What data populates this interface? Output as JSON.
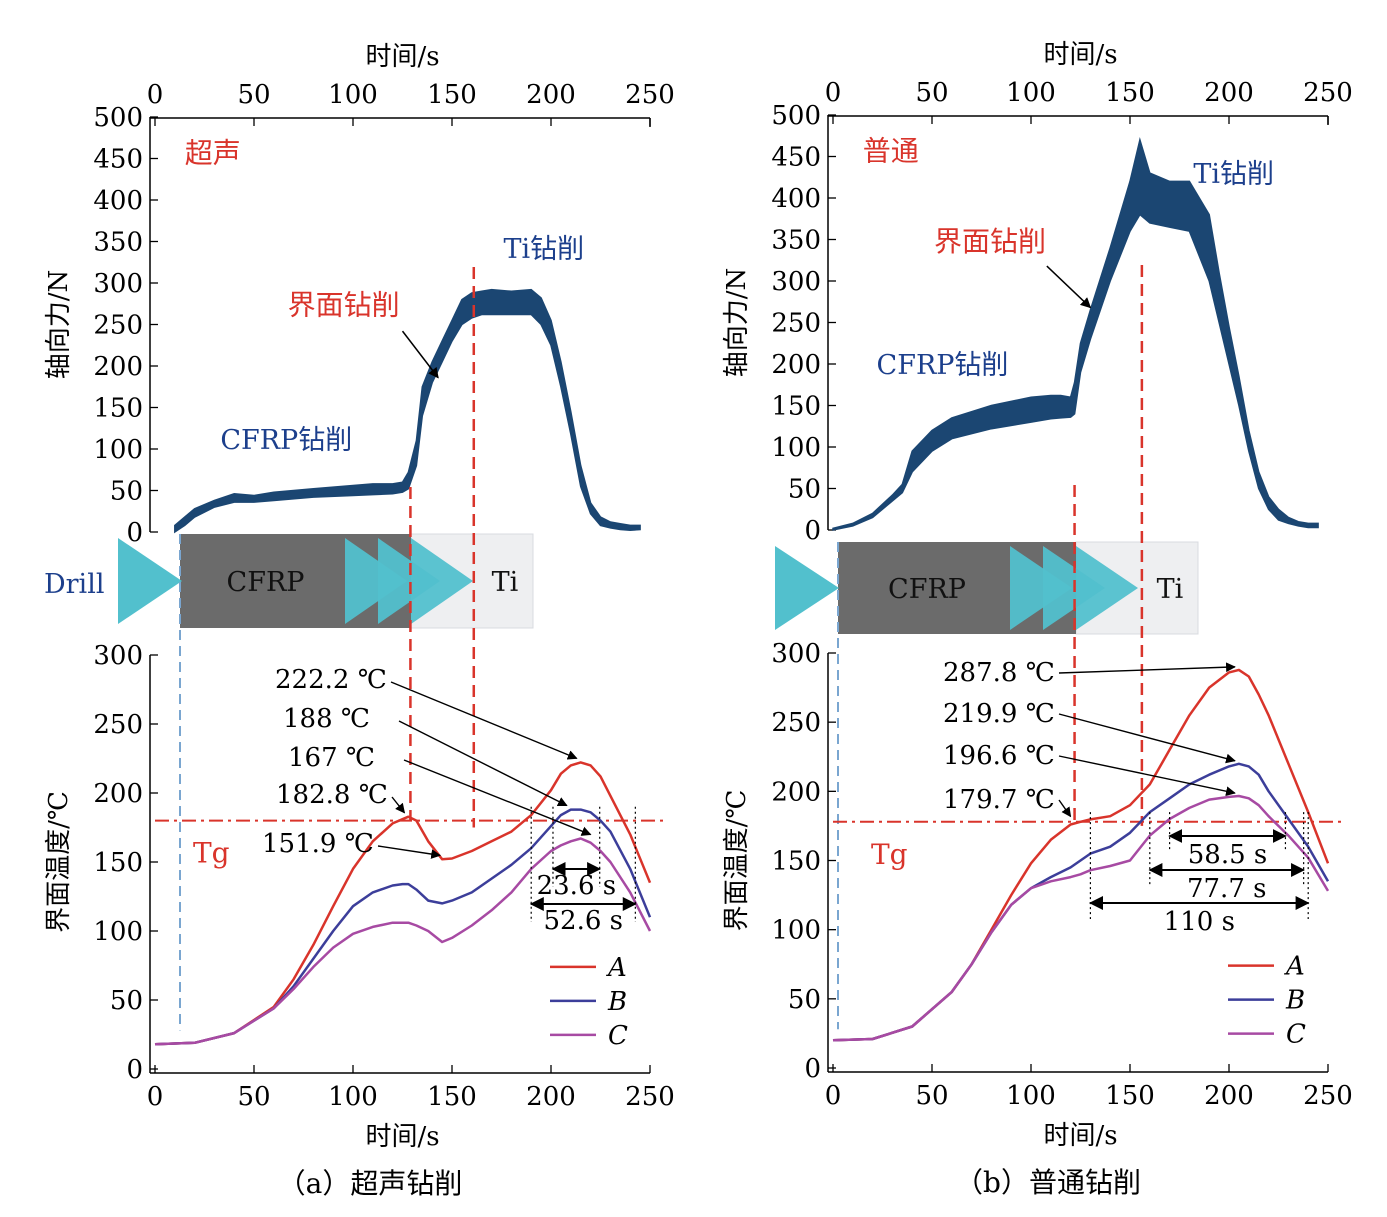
{
  "figure": {
    "colors": {
      "force": "#1b4672",
      "guide": "#d9342b",
      "drillBlue": "#7aa6d0",
      "cfrp": "#6b6b6b",
      "ti": "#eeeff1",
      "drillCyan": "#52c0cd",
      "labelBlue": "#1c3f8c",
      "curveA": "#d9342b",
      "curveB": "#3c3e9a",
      "curveC": "#a74aa3"
    },
    "panels": [
      {
        "caption": "（a）超声钻削",
        "xAxisLabel": "时间/s",
        "forceYLabel": "轴向力/N",
        "tempYLabel": "界面温度/℃",
        "mode": "超声",
        "tg": "Tg",
        "forceLabels": {
          "cfrp": "CFRP钻削",
          "iface": "界面钻削",
          "ti": "Ti钻削"
        },
        "materials": {
          "drill": "Drill",
          "cfrp": "CFRP",
          "ti": "Ti"
        },
        "xTicks": [
          "0",
          "50",
          "100",
          "150",
          "200",
          "250"
        ],
        "forceTicks": [
          "0",
          "50",
          "100",
          "150",
          "200",
          "250",
          "300",
          "350",
          "400",
          "450",
          "500"
        ],
        "tempTicks": [
          "0",
          "50",
          "100",
          "150",
          "200",
          "250",
          "300"
        ],
        "legend": [
          "A",
          "B",
          "C"
        ],
        "annotations": [
          "222.2 ℃",
          "188 ℃",
          "167 ℃",
          "182.8 ℃",
          "151.9 ℃"
        ],
        "durations": [
          "23.6 s",
          "52.6 s"
        ]
      },
      {
        "caption": "（b）普通钻削",
        "xAxisLabel": "时间/s",
        "forceYLabel": "轴向力/N",
        "tempYLabel": "界面温度/℃",
        "mode": "普通",
        "tg": "Tg",
        "forceLabels": {
          "cfrp": "CFRP钻削",
          "iface": "界面钻削",
          "ti": "Ti钻削"
        },
        "materials": {
          "drill": "Drill",
          "cfrp": "CFRP",
          "ti": "Ti"
        },
        "xTicks": [
          "0",
          "50",
          "100",
          "150",
          "200",
          "250"
        ],
        "forceTicks": [
          "0",
          "50",
          "100",
          "150",
          "200",
          "250",
          "300",
          "350",
          "400",
          "450",
          "500"
        ],
        "tempTicks": [
          "0",
          "50",
          "100",
          "150",
          "200",
          "250",
          "300"
        ],
        "legend": [
          "A",
          "B",
          "C"
        ],
        "annotations": [
          "287.8 ℃",
          "219.9 ℃",
          "196.6 ℃",
          "179.7 ℃"
        ],
        "durations": [
          "58.5 s",
          "77.7 s",
          "110 s"
        ]
      }
    ]
  },
  "chart_data": [
    {
      "type": "area",
      "panel": "a",
      "title": "超声",
      "xlabel": "时间/s",
      "ylabel": "轴向力/N",
      "xlim": [
        0,
        250
      ],
      "ylim": [
        0,
        500
      ],
      "grid": false,
      "x": [
        10,
        15,
        20,
        30,
        40,
        50,
        60,
        80,
        100,
        110,
        120,
        125,
        128,
        132,
        135,
        140,
        145,
        150,
        155,
        160,
        165,
        170,
        180,
        190,
        195,
        200,
        205,
        210,
        215,
        220,
        225,
        230,
        235,
        240,
        245
      ],
      "low": [
        0,
        8,
        18,
        30,
        36,
        36,
        38,
        42,
        44,
        45,
        46,
        48,
        52,
        80,
        140,
        180,
        205,
        230,
        250,
        258,
        262,
        262,
        262,
        262,
        250,
        225,
        175,
        118,
        55,
        22,
        8,
        5,
        3,
        2,
        3
      ],
      "high": [
        8,
        18,
        28,
        38,
        46,
        44,
        48,
        52,
        56,
        58,
        58,
        60,
        72,
        110,
        175,
        205,
        230,
        255,
        280,
        288,
        290,
        292,
        290,
        292,
        282,
        255,
        205,
        145,
        80,
        35,
        18,
        12,
        10,
        8,
        8
      ],
      "regions": [
        "CFRP钻削",
        "界面钻削",
        "Ti钻削"
      ],
      "markers_s": [
        129,
        161
      ]
    },
    {
      "type": "line",
      "panel": "a",
      "title": "",
      "xlabel": "时间/s",
      "ylabel": "界面温度/℃",
      "xlim": [
        0,
        250
      ],
      "ylim": [
        0,
        300
      ],
      "grid": false,
      "tg": 180,
      "x": [
        0,
        20,
        40,
        60,
        70,
        80,
        90,
        100,
        110,
        120,
        125,
        128,
        132,
        138,
        145,
        150,
        160,
        170,
        180,
        190,
        200,
        205,
        210,
        215,
        220,
        225,
        230,
        240,
        250
      ],
      "series": [
        {
          "name": "A",
          "values": [
            18,
            19,
            26,
            45,
            65,
            90,
            118,
            145,
            165,
            178,
            181,
            182.8,
            180,
            165,
            152,
            152.5,
            158,
            165,
            172,
            184,
            202,
            214,
            220,
            222.2,
            220,
            212,
            198,
            170,
            135
          ]
        },
        {
          "name": "B",
          "values": [
            18,
            19,
            26,
            44,
            60,
            80,
            100,
            118,
            128,
            133,
            134,
            134,
            130,
            122,
            120,
            122,
            128,
            138,
            148,
            160,
            176,
            184,
            188,
            188,
            186,
            180,
            172,
            145,
            110
          ]
        },
        {
          "name": "C",
          "values": [
            18,
            19,
            26,
            44,
            58,
            74,
            88,
            98,
            103,
            106,
            106,
            106,
            104,
            100,
            92,
            95,
            104,
            115,
            128,
            145,
            158,
            162,
            165,
            167,
            164,
            158,
            150,
            128,
            100
          ]
        }
      ],
      "annotations": [
        {
          "text": "222.2 ℃",
          "x": 215,
          "y": 222.2
        },
        {
          "text": "188 ℃",
          "x": 210,
          "y": 188
        },
        {
          "text": "167 ℃",
          "x": 222,
          "y": 167
        },
        {
          "text": "182.8 ℃",
          "x": 128,
          "y": 182.8
        },
        {
          "text": "151.9 ℃",
          "x": 146,
          "y": 151.9
        }
      ],
      "durations": [
        {
          "text": "23.6 s",
          "from": 201,
          "to": 224.6
        },
        {
          "text": "52.6 s",
          "from": 190,
          "to": 242.6
        }
      ]
    },
    {
      "type": "area",
      "panel": "b",
      "title": "普通",
      "xlabel": "时间/s",
      "ylabel": "轴向力/N",
      "xlim": [
        0,
        250
      ],
      "ylim": [
        0,
        500
      ],
      "grid": false,
      "x": [
        0,
        10,
        20,
        30,
        35,
        40,
        50,
        60,
        80,
        100,
        110,
        115,
        120,
        122,
        125,
        130,
        140,
        150,
        155,
        160,
        170,
        180,
        185,
        190,
        195,
        200,
        205,
        210,
        215,
        220,
        225,
        230,
        235,
        240,
        245
      ],
      "low": [
        0,
        5,
        15,
        35,
        45,
        70,
        95,
        110,
        122,
        130,
        134,
        135,
        136,
        140,
        190,
        230,
        300,
        360,
        380,
        370,
        365,
        360,
        330,
        300,
        250,
        200,
        150,
        95,
        50,
        25,
        12,
        8,
        5,
        3,
        3
      ],
      "high": [
        2,
        8,
        20,
        42,
        55,
        95,
        120,
        135,
        150,
        160,
        162,
        162,
        160,
        178,
        225,
        265,
        340,
        420,
        470,
        430,
        420,
        420,
        400,
        380,
        310,
        245,
        185,
        120,
        70,
        40,
        25,
        15,
        10,
        8,
        8
      ],
      "regions": [
        "CFRP钻削",
        "界面钻削",
        "Ti钻削"
      ],
      "markers_s": [
        122,
        156
      ]
    },
    {
      "type": "line",
      "panel": "b",
      "title": "",
      "xlabel": "时间/s",
      "ylabel": "界面温度/℃",
      "xlim": [
        0,
        250
      ],
      "ylim": [
        0,
        300
      ],
      "grid": false,
      "tg": 178,
      "x": [
        0,
        20,
        40,
        60,
        70,
        80,
        90,
        100,
        110,
        120,
        125,
        130,
        140,
        150,
        160,
        170,
        180,
        190,
        200,
        205,
        210,
        215,
        220,
        230,
        240,
        250
      ],
      "series": [
        {
          "name": "A",
          "values": [
            20,
            21,
            30,
            55,
            75,
            100,
            125,
            148,
            165,
            176,
            178,
            179.7,
            182,
            190,
            205,
            230,
            255,
            275,
            286,
            287.8,
            283,
            270,
            255,
            220,
            185,
            148
          ]
        },
        {
          "name": "B",
          "values": [
            20,
            21,
            30,
            55,
            75,
            98,
            118,
            130,
            138,
            145,
            150,
            155,
            160,
            170,
            185,
            195,
            205,
            212,
            218,
            219.9,
            218,
            212,
            200,
            180,
            160,
            135
          ]
        },
        {
          "name": "C",
          "values": [
            20,
            21,
            30,
            55,
            75,
            98,
            118,
            130,
            135,
            138,
            140,
            143,
            146,
            150,
            168,
            180,
            188,
            194,
            196,
            196.6,
            195,
            190,
            182,
            168,
            152,
            128
          ]
        }
      ],
      "annotations": [
        {
          "text": "287.8 ℃",
          "x": 205,
          "y": 287.8
        },
        {
          "text": "219.9 ℃",
          "x": 205,
          "y": 219.9
        },
        {
          "text": "196.6 ℃",
          "x": 205,
          "y": 196.6
        },
        {
          "text": "179.7 ℃",
          "x": 122,
          "y": 179.7
        }
      ],
      "durations": [
        {
          "text": "58.5 s",
          "from": 170,
          "to": 228.5
        },
        {
          "text": "77.7 s",
          "from": 160,
          "to": 237.7
        },
        {
          "text": "110 s",
          "from": 130,
          "to": 240
        }
      ]
    }
  ]
}
